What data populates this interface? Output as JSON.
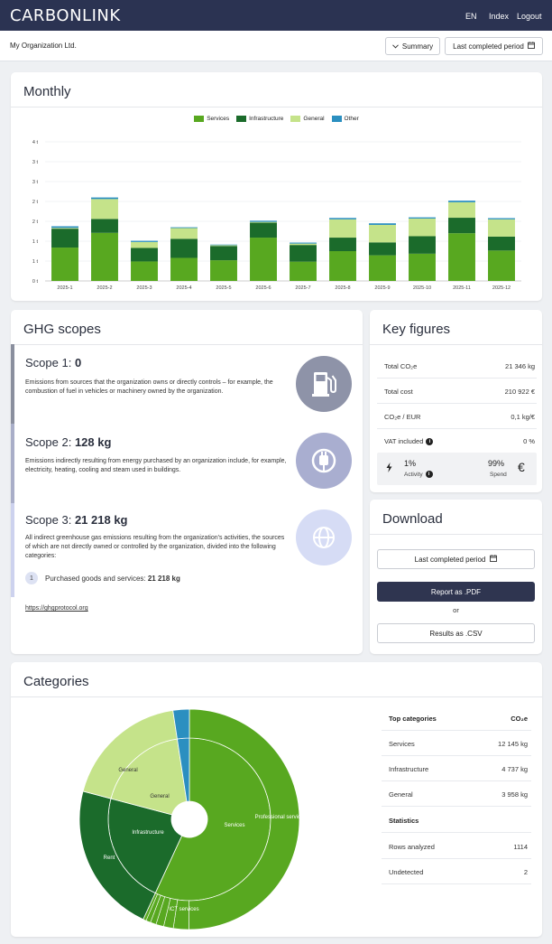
{
  "app": {
    "logo": "CARBONLINK",
    "nav": {
      "lang": "EN",
      "index": "Index",
      "logout": "Logout"
    }
  },
  "subheader": {
    "org": "My Organization Ltd.",
    "summary_label": "Summary",
    "period_label": "Last completed period"
  },
  "monthly": {
    "title": "Monthly",
    "legend": [
      "Services",
      "Infrastructure",
      "General",
      "Other"
    ],
    "colors": {
      "Services": "#58a820",
      "Infrastructure": "#1b6b2b",
      "General": "#c5e38a",
      "Other": "#2b8fc0"
    }
  },
  "chart_data": {
    "type": "bar",
    "stacked": true,
    "categories": [
      "2025-1",
      "2025-2",
      "2025-3",
      "2025-4",
      "2025-5",
      "2025-6",
      "2025-7",
      "2025-8",
      "2025-9",
      "2025-10",
      "2025-11",
      "2025-12"
    ],
    "series": [
      {
        "name": "Services",
        "values": [
          1.68,
          2.42,
          0.98,
          1.16,
          1.04,
          2.18,
          0.97,
          1.5,
          1.29,
          1.37,
          2.4,
          1.53
        ]
      },
      {
        "name": "Infrastructure",
        "values": [
          0.95,
          0.7,
          0.68,
          0.96,
          0.72,
          0.75,
          0.84,
          0.68,
          0.65,
          0.88,
          0.78,
          0.7
        ]
      },
      {
        "name": "General",
        "values": [
          0.04,
          1.0,
          0.3,
          0.54,
          0.04,
          0.04,
          0.07,
          0.92,
          0.88,
          0.89,
          0.78,
          0.87
        ]
      },
      {
        "name": "Other",
        "values": [
          0.08,
          0.08,
          0.06,
          0.04,
          0.03,
          0.06,
          0.05,
          0.07,
          0.08,
          0.06,
          0.08,
          0.06
        ]
      }
    ],
    "ytick_labels": [
      "0 t",
      "1 t",
      "1 t",
      "2 t",
      "2 t",
      "3 t",
      "3 t",
      "4 t"
    ],
    "ylim": [
      0,
      7
    ]
  },
  "scopes": {
    "title": "GHG scopes",
    "items": [
      {
        "label": "Scope 1:",
        "value": "0",
        "desc": "Emissions from sources that the organization owns or directly controls – for example, the combustion of fuel in vehicles or machinery owned by the organization."
      },
      {
        "label": "Scope 2:",
        "value": "128 kg",
        "desc": "Emissions indirectly resulting from energy purchased by an organization include, for example, electricity, heating, cooling and steam used in buildings."
      },
      {
        "label": "Scope 3:",
        "value": "21 218 kg",
        "desc": "All indirect greenhouse gas emissions resulting from the organization's activities, the sources of which are not directly owned or controlled by the organization, divided into the following categories:"
      }
    ],
    "category": {
      "num": "1",
      "label": "Purchased goods and services:",
      "value": "21 218 kg"
    },
    "link": "https://ghgprotocol.org"
  },
  "key_figures": {
    "title": "Key figures",
    "rows": [
      {
        "label": "Total CO₂e",
        "value": "21 346 kg"
      },
      {
        "label": "Total cost",
        "value": "210 922 €"
      },
      {
        "label": "CO₂e / EUR",
        "value": "0,1 kg/€"
      },
      {
        "label": "VAT included",
        "value": "0 %"
      }
    ],
    "activity": {
      "pct": "1%",
      "label": "Activity"
    },
    "spend": {
      "pct": "99%",
      "label": "Spend",
      "symbol": "€"
    }
  },
  "download": {
    "title": "Download",
    "period_label": "Last completed period",
    "pdf_label": "Report as .PDF",
    "or": "or",
    "csv_label": "Results as .CSV"
  },
  "categories": {
    "title": "Categories",
    "sunburst_labels": {
      "inner": [
        "General",
        "Infrastructure",
        "Services"
      ],
      "outer": [
        "General",
        "Rent",
        "Professional services",
        "ICT services"
      ]
    },
    "sunburst": {
      "inner": [
        {
          "name": "Services",
          "share": 0.569
        },
        {
          "name": "Infrastructure",
          "share": 0.222
        },
        {
          "name": "General",
          "share": 0.185
        },
        {
          "name": "Other",
          "share": 0.024
        }
      ]
    },
    "table_head": {
      "label": "Top categories",
      "unit": "CO₂e"
    },
    "top": [
      {
        "label": "Services",
        "value": "12 145 kg"
      },
      {
        "label": "Infrastructure",
        "value": "4 737 kg"
      },
      {
        "label": "General",
        "value": "3 958 kg"
      }
    ],
    "stats_head": "Statistics",
    "stats": [
      {
        "label": "Rows analyzed",
        "value": "1114"
      },
      {
        "label": "Undetected",
        "value": "2"
      }
    ]
  }
}
